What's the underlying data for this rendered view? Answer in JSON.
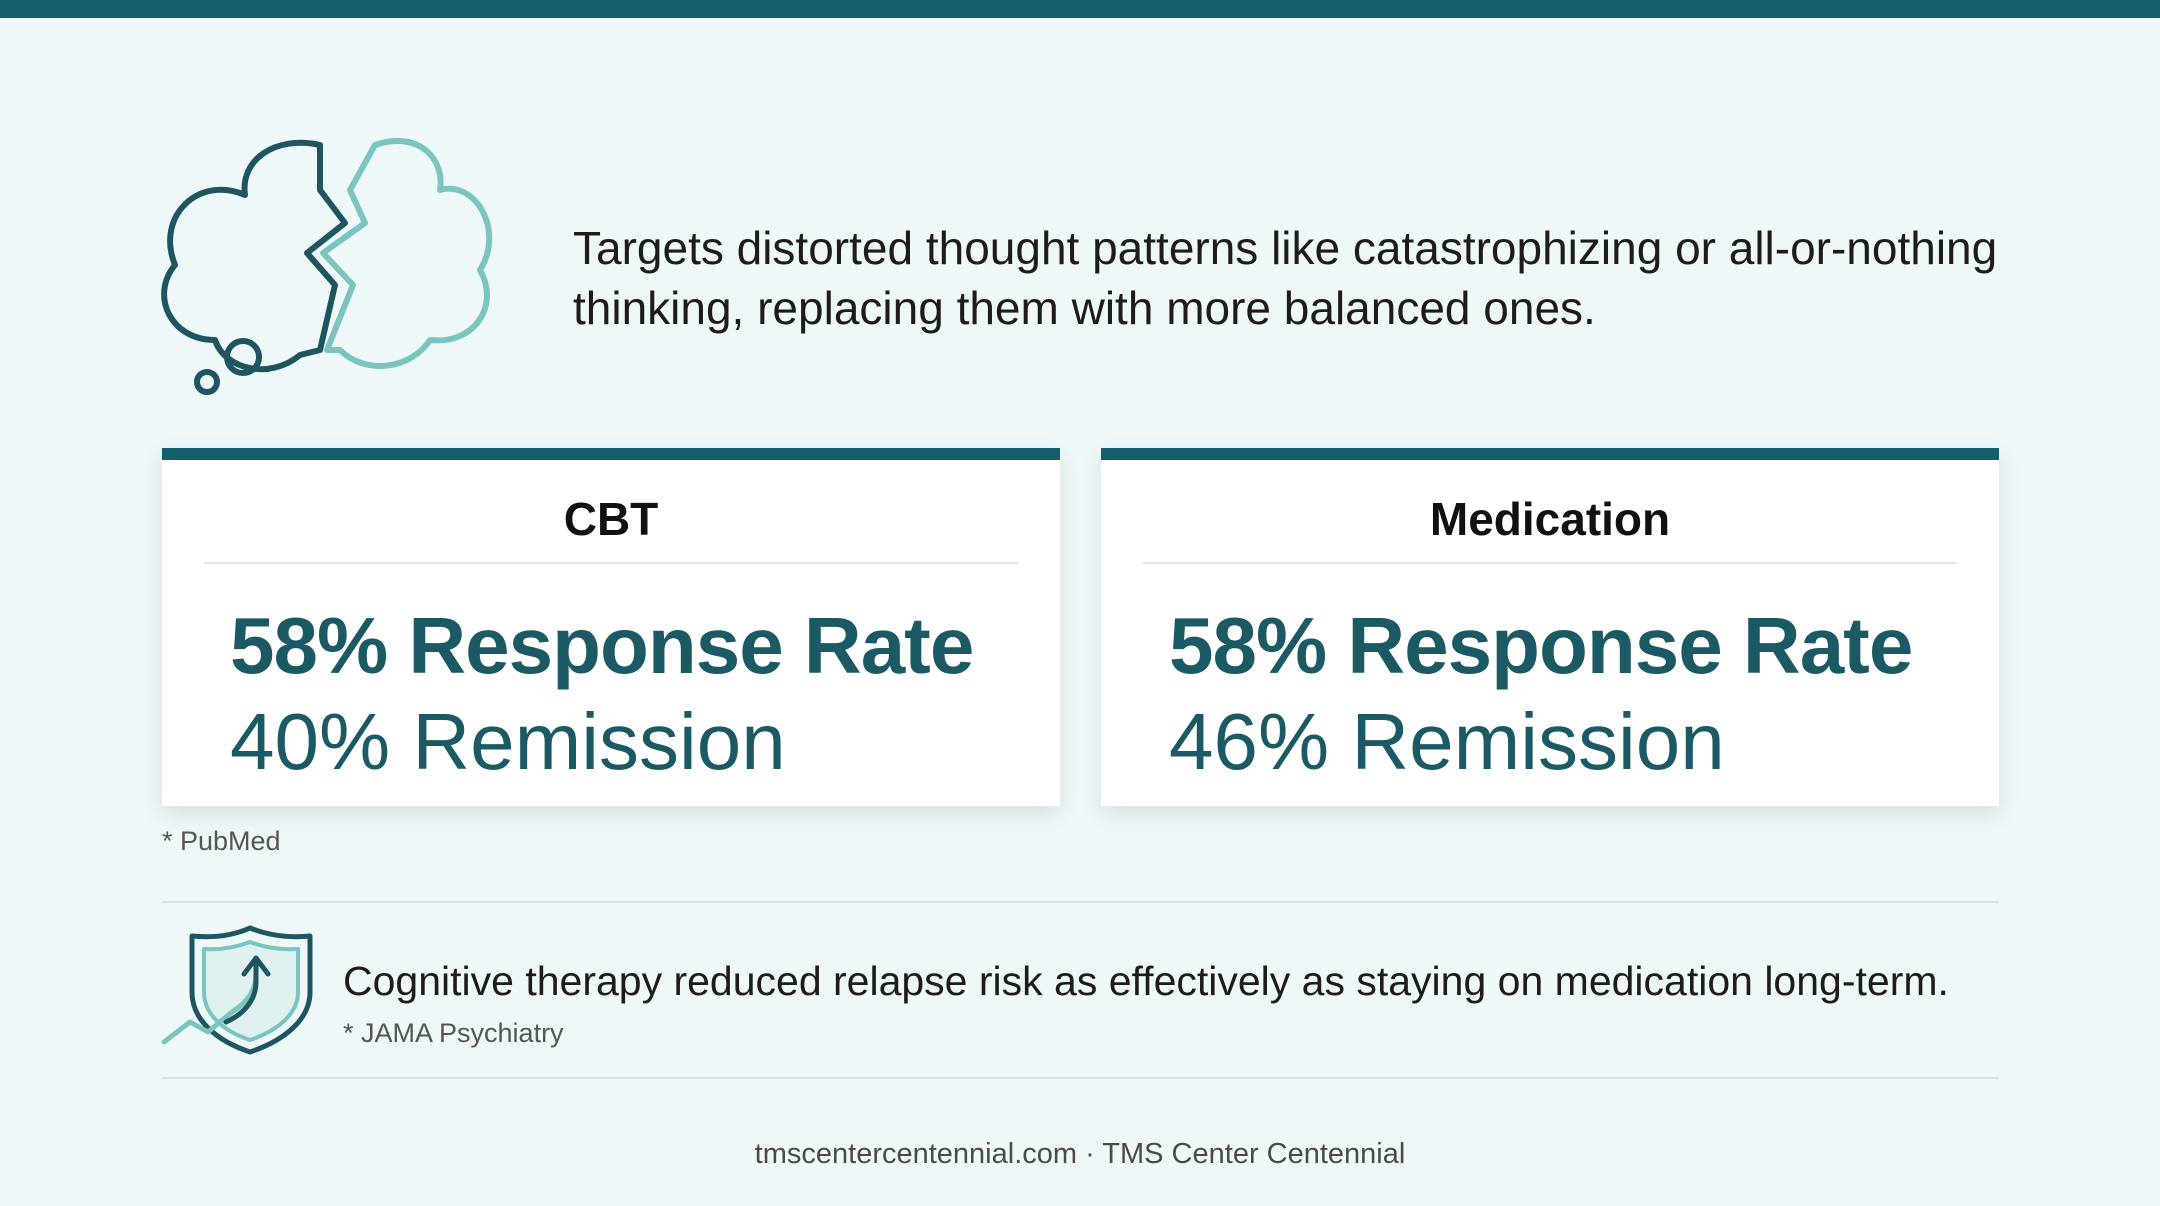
{
  "intro": {
    "icon": "cracked-thought-cloud-icon",
    "text": "Targets distorted thought patterns like catastrophizing or all-or-nothing thinking, replacing them with more balanced ones."
  },
  "cards": [
    {
      "title": "CBT",
      "response": "58% Response Rate",
      "remission": "40% Remission"
    },
    {
      "title": "Medication",
      "response": "58% Response Rate",
      "remission": "46% Remission"
    }
  ],
  "source_1": "* PubMed",
  "relapse": {
    "icon": "shield-arrow-icon",
    "text": "Cognitive therapy reduced relapse risk as effectively as staying on medication long-term.",
    "source": "* JAMA Psychiatry"
  },
  "footer": "tmscentercentennial.com · TMS Center Centennial",
  "colors": {
    "accent": "#13606b",
    "stat_text": "#1b5a64",
    "light_accent": "#7cc4c0",
    "background": "#eef8f9"
  }
}
